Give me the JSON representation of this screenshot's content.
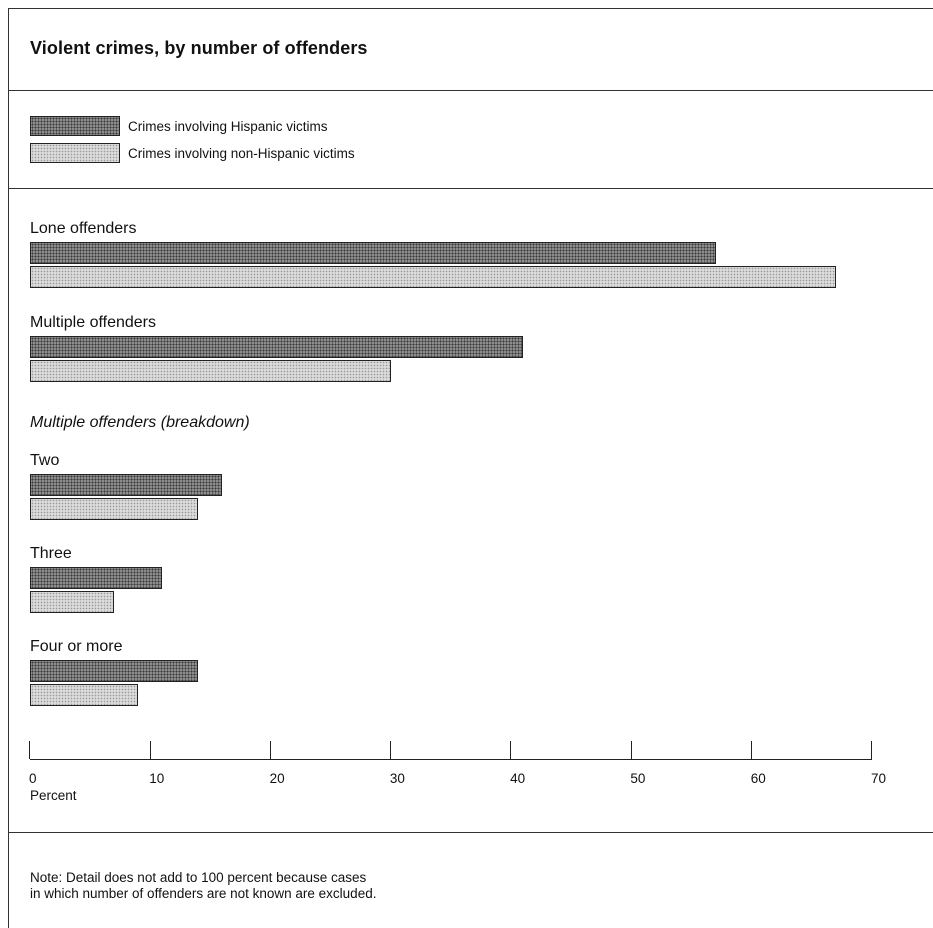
{
  "chart_data": {
    "type": "bar",
    "orientation": "horizontal",
    "title": "Violent crimes, by number of offenders",
    "legend": {
      "position": "top-left",
      "entries": [
        "Crimes involving Hispanic victims",
        "Crimes involving non-Hispanic victims"
      ]
    },
    "series_colors": [
      "#8c8c8c",
      "#dcdcdc"
    ],
    "section_heading": "Multiple offenders (breakdown)",
    "categories": [
      "Lone offenders",
      "Multiple offenders",
      "Two",
      "Three",
      "Four or more"
    ],
    "series": [
      {
        "name": "Crimes involving Hispanic victims",
        "values": [
          57,
          41,
          16,
          11,
          14
        ]
      },
      {
        "name": "Crimes involving non-Hispanic victims",
        "values": [
          67,
          30,
          14,
          7,
          9
        ]
      }
    ],
    "xlim": [
      0,
      70
    ],
    "xticks": [
      "0",
      "10",
      "20",
      "30",
      "40",
      "50",
      "60",
      "70"
    ],
    "xlabel": "Percent",
    "ylabel": "",
    "grid": false
  },
  "note": {
    "line1": "Note: Detail does not add to 100 percent because cases",
    "line2": "in which number of offenders are not known are excluded."
  }
}
